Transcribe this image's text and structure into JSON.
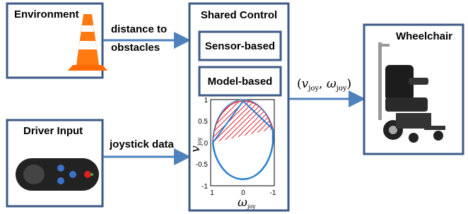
{
  "environment": {
    "title": "Environment"
  },
  "driver_input": {
    "title": "Driver Input"
  },
  "shared_control": {
    "title": "Shared Control",
    "blocks": [
      "Sensor-based",
      "Model-based"
    ],
    "plot": {
      "y_label": [
        "v",
        "joy"
      ],
      "x_label": [
        "ω",
        "joy"
      ],
      "y_ticks": [
        "1",
        "0.5",
        "0",
        "-0.5",
        "-1"
      ],
      "x_ticks": [
        "1",
        "0",
        "-1"
      ]
    }
  },
  "wheelchair": {
    "title": "Wheelchair"
  },
  "edges": {
    "environment_to_control": [
      "distance to",
      "obstacles"
    ],
    "driver_to_control": "joystick data",
    "control_to_wheelchair": [
      "(",
      "v",
      "joy",
      ", ",
      "ω",
      "joy",
      ")"
    ]
  }
}
